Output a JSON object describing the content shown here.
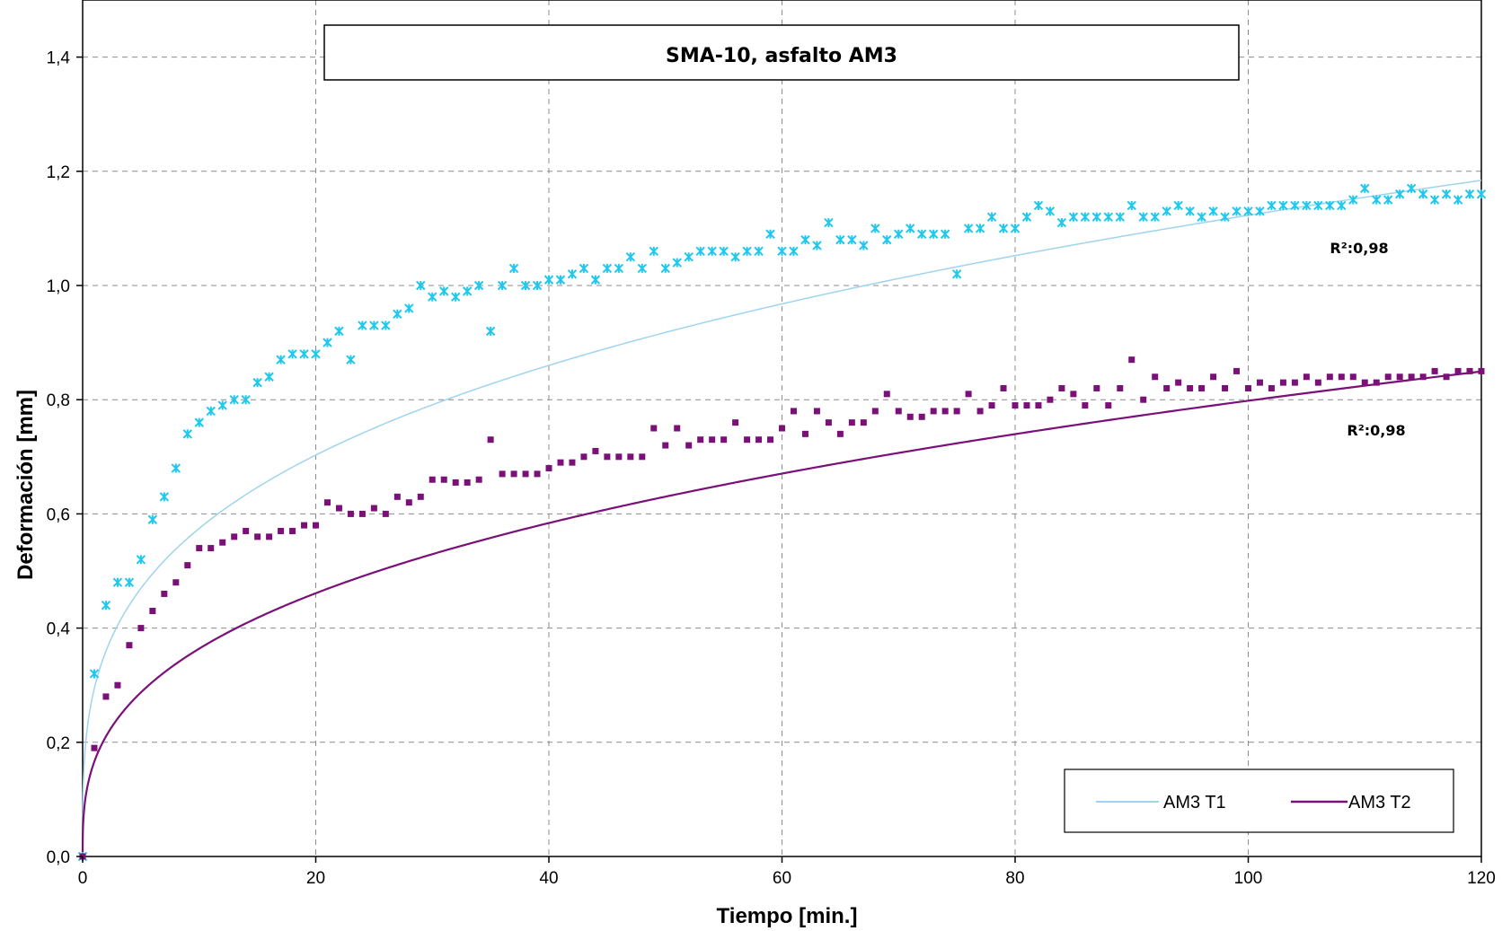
{
  "chart_data": {
    "type": "scatter",
    "title": "SMA-10, asfalto AM3",
    "xlabel": "Tiempo [min.]",
    "ylabel": "Deformación [mm]",
    "xlim": [
      0,
      120
    ],
    "ylim": [
      0,
      1.5
    ],
    "x_ticks": [
      "0",
      "20",
      "40",
      "60",
      "80",
      "100",
      "120"
    ],
    "y_ticks": [
      "0,0",
      "0,2",
      "0,4",
      "0,6",
      "0,8",
      "1,0",
      "1,2",
      "1,4"
    ],
    "grid": true,
    "legend_position": "bottom-right",
    "r2_labels": [
      "R²:0,98",
      "R²:0,98"
    ],
    "series": [
      {
        "name": "AM3 T1",
        "color": "#1ec8ee",
        "fit_color": "#9fd4ee",
        "marker": "asterisk",
        "x": [
          0,
          1,
          2,
          3,
          4,
          5,
          6,
          7,
          8,
          9,
          10,
          11,
          12,
          13,
          14,
          15,
          16,
          17,
          18,
          19,
          20,
          21,
          22,
          23,
          24,
          25,
          26,
          27,
          28,
          29,
          30,
          31,
          32,
          33,
          34,
          35,
          36,
          37,
          38,
          39,
          40,
          41,
          42,
          43,
          44,
          45,
          46,
          47,
          48,
          49,
          50,
          51,
          52,
          53,
          54,
          55,
          56,
          57,
          58,
          59,
          60,
          61,
          62,
          63,
          64,
          65,
          66,
          67,
          68,
          69,
          70,
          71,
          72,
          73,
          74,
          75,
          76,
          77,
          78,
          79,
          80,
          81,
          82,
          83,
          84,
          85,
          86,
          87,
          88,
          89,
          90,
          91,
          92,
          93,
          94,
          95,
          96,
          97,
          98,
          99,
          100,
          101,
          102,
          103,
          104,
          105,
          106,
          107,
          108,
          109,
          110,
          111,
          112,
          113,
          114,
          115,
          116,
          117,
          118,
          119,
          120
        ],
        "y": [
          0,
          0.32,
          0.44,
          0.48,
          0.48,
          0.52,
          0.59,
          0.63,
          0.68,
          0.74,
          0.76,
          0.78,
          0.79,
          0.8,
          0.8,
          0.83,
          0.84,
          0.87,
          0.88,
          0.88,
          0.88,
          0.9,
          0.92,
          0.87,
          0.93,
          0.93,
          0.93,
          0.95,
          0.96,
          1.0,
          0.98,
          0.99,
          0.98,
          0.99,
          1.0,
          0.92,
          1.0,
          1.03,
          1.0,
          1.0,
          1.01,
          1.01,
          1.02,
          1.03,
          1.01,
          1.03,
          1.03,
          1.05,
          1.03,
          1.06,
          1.03,
          1.04,
          1.05,
          1.06,
          1.06,
          1.06,
          1.05,
          1.06,
          1.06,
          1.09,
          1.06,
          1.06,
          1.08,
          1.07,
          1.11,
          1.08,
          1.08,
          1.07,
          1.1,
          1.08,
          1.09,
          1.1,
          1.09,
          1.09,
          1.09,
          1.02,
          1.1,
          1.1,
          1.12,
          1.1,
          1.1,
          1.12,
          1.14,
          1.13,
          1.11,
          1.12,
          1.12,
          1.12,
          1.12,
          1.12,
          1.14,
          1.12,
          1.12,
          1.13,
          1.14,
          1.13,
          1.12,
          1.13,
          1.12,
          1.13,
          1.13,
          1.13,
          1.14,
          1.14,
          1.14,
          1.14,
          1.14,
          1.14,
          1.14,
          1.15,
          1.17,
          1.15,
          1.15,
          1.16,
          1.17,
          1.16,
          1.15,
          1.16,
          1.15,
          1.16,
          1.16
        ],
        "fit": {
          "a": 0.294,
          "b": 0.291
        }
      },
      {
        "name": "AM3 T2",
        "color": "#7a1078",
        "fit_color": "#7a1078",
        "marker": "square",
        "x": [
          0,
          1,
          2,
          3,
          4,
          5,
          6,
          7,
          8,
          9,
          10,
          11,
          12,
          13,
          14,
          15,
          16,
          17,
          18,
          19,
          20,
          21,
          22,
          23,
          24,
          25,
          26,
          27,
          28,
          29,
          30,
          31,
          32,
          33,
          34,
          35,
          36,
          37,
          38,
          39,
          40,
          41,
          42,
          43,
          44,
          45,
          46,
          47,
          48,
          49,
          50,
          51,
          52,
          53,
          54,
          55,
          56,
          57,
          58,
          59,
          60,
          61,
          62,
          63,
          64,
          65,
          66,
          67,
          68,
          69,
          70,
          71,
          72,
          73,
          74,
          75,
          76,
          77,
          78,
          79,
          80,
          81,
          82,
          83,
          84,
          85,
          86,
          87,
          88,
          89,
          90,
          91,
          92,
          93,
          94,
          95,
          96,
          97,
          98,
          99,
          100,
          101,
          102,
          103,
          104,
          105,
          106,
          107,
          108,
          109,
          110,
          111,
          112,
          113,
          114,
          115,
          116,
          117,
          118,
          119,
          120
        ],
        "y": [
          0,
          0.19,
          0.28,
          0.3,
          0.37,
          0.4,
          0.43,
          0.46,
          0.48,
          0.51,
          0.54,
          0.54,
          0.55,
          0.56,
          0.57,
          0.56,
          0.56,
          0.57,
          0.57,
          0.58,
          0.58,
          0.62,
          0.61,
          0.6,
          0.6,
          0.61,
          0.6,
          0.63,
          0.62,
          0.63,
          0.66,
          0.66,
          0.655,
          0.655,
          0.66,
          0.73,
          0.67,
          0.67,
          0.67,
          0.67,
          0.68,
          0.69,
          0.69,
          0.7,
          0.71,
          0.7,
          0.7,
          0.7,
          0.7,
          0.75,
          0.72,
          0.75,
          0.72,
          0.73,
          0.73,
          0.73,
          0.76,
          0.73,
          0.73,
          0.73,
          0.75,
          0.78,
          0.74,
          0.78,
          0.76,
          0.74,
          0.76,
          0.76,
          0.78,
          0.81,
          0.78,
          0.77,
          0.77,
          0.78,
          0.78,
          0.78,
          0.81,
          0.78,
          0.79,
          0.82,
          0.79,
          0.79,
          0.79,
          0.8,
          0.82,
          0.81,
          0.79,
          0.82,
          0.79,
          0.82,
          0.87,
          0.8,
          0.84,
          0.82,
          0.83,
          0.82,
          0.82,
          0.84,
          0.82,
          0.85,
          0.82,
          0.83,
          0.82,
          0.83,
          0.83,
          0.84,
          0.83,
          0.84,
          0.84,
          0.84,
          0.83,
          0.83,
          0.84,
          0.84,
          0.84,
          0.84,
          0.85,
          0.84,
          0.85,
          0.85,
          0.85
        ],
        "fit": {
          "a": 0.166,
          "b": 0.341
        }
      }
    ]
  }
}
